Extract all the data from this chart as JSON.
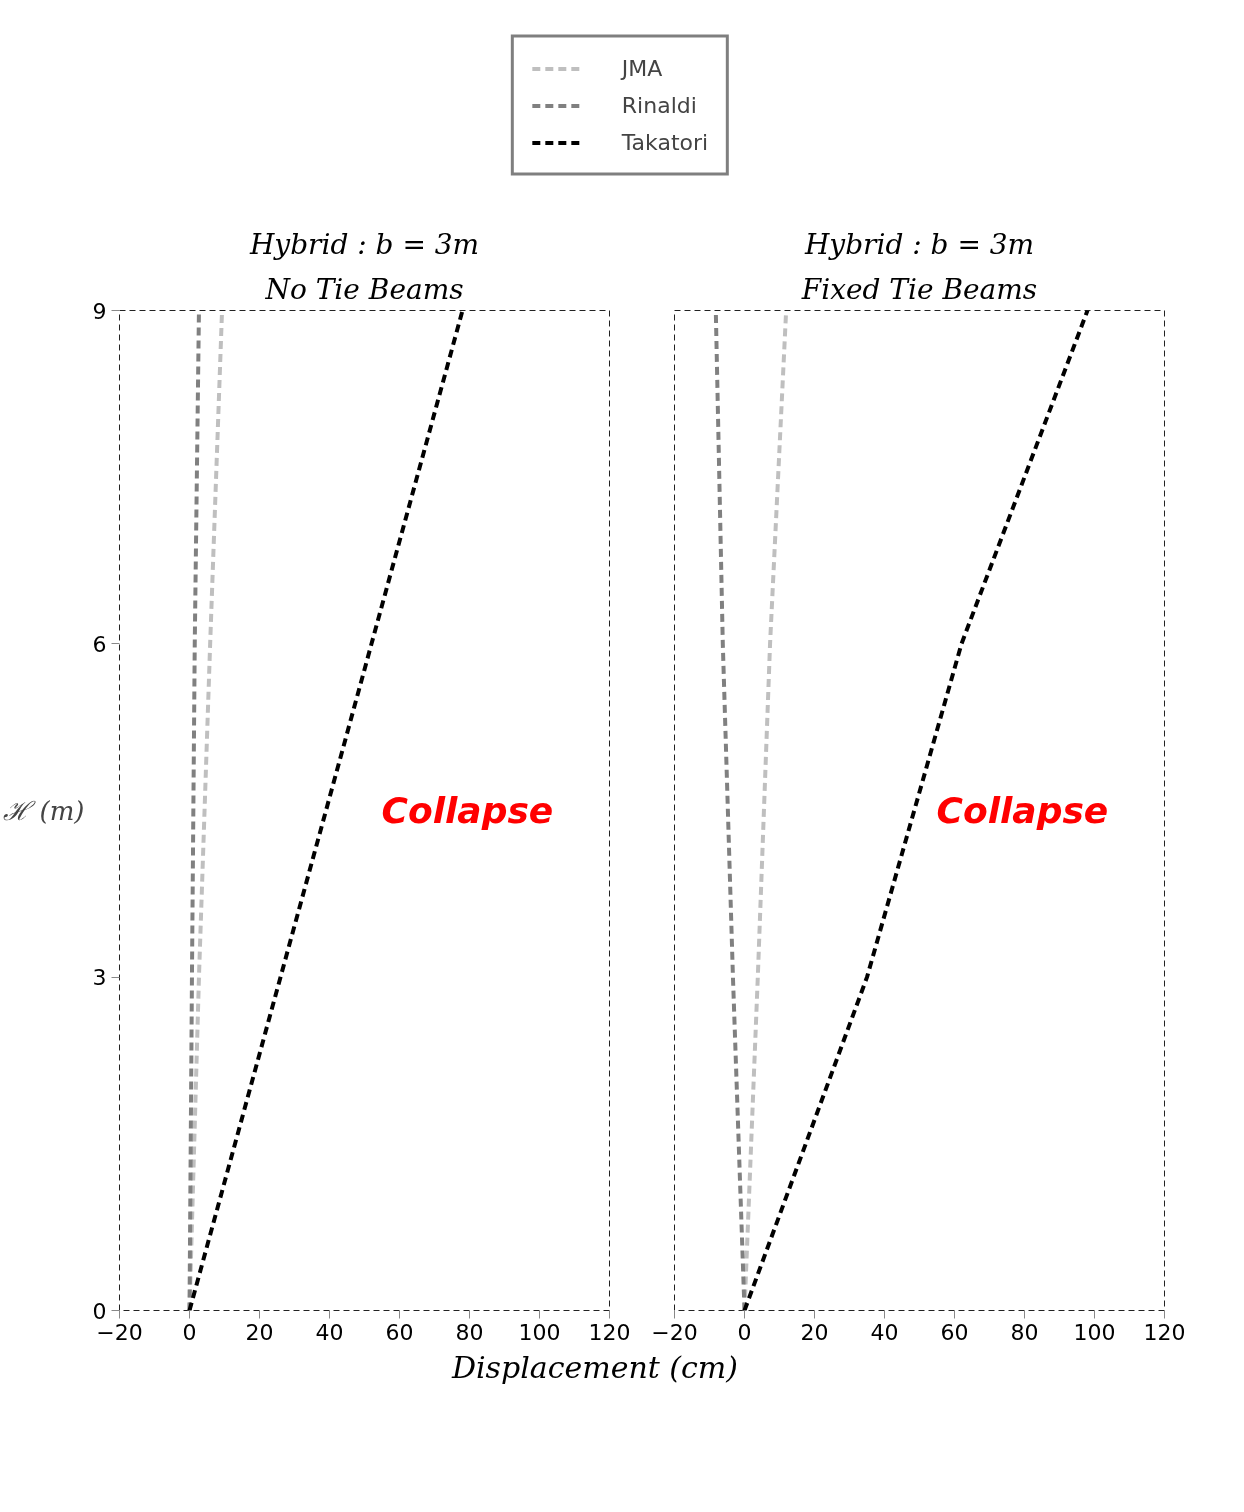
{
  "chart_data": [
    {
      "type": "line",
      "title": "Hybrid : b = 3m",
      "subtitle": "No Tie Beams",
      "ylabel": "ℋ (m)",
      "xlabel": "Displacement (cm)",
      "xlim": [
        -20,
        120
      ],
      "xticks": [
        -20,
        0,
        20,
        40,
        60,
        80,
        100,
        120
      ],
      "ylim": [
        0,
        9
      ],
      "yticks": [
        0,
        3,
        6,
        9
      ],
      "line_style": "dashed",
      "legend": "top",
      "marker": "none",
      "series": [
        {
          "name": "JMA",
          "color": "#bfbfbf",
          "x": [
            0,
            2.7,
            5.9,
            9.3
          ],
          "values": [
            0,
            3,
            6,
            9
          ]
        },
        {
          "name": "Rinaldi",
          "color": "#808080",
          "x": [
            0,
            0.7,
            1.5,
            2.7
          ],
          "values": [
            0,
            3,
            6,
            9
          ]
        },
        {
          "name": "Takatori",
          "color": "#000000",
          "x": [
            0,
            26,
            52,
            78
          ],
          "values": [
            0,
            3,
            6,
            9
          ]
        }
      ],
      "annotations": [
        "Collapse"
      ]
    },
    {
      "type": "line",
      "title": "Hybrid : b = 3m",
      "subtitle": "Fixed Tie Beams",
      "xlim": [
        -20,
        120
      ],
      "xticks": [
        -20,
        0,
        20,
        40,
        60,
        80,
        100,
        120
      ],
      "ylim": [
        0,
        9
      ],
      "tick_labels": "x",
      "line_style": "dashed",
      "marker": "none",
      "series": [
        {
          "color": "#bfbfbf",
          "x": [
            0,
            3.8,
            7.3,
            11.9
          ],
          "values": [
            0,
            3,
            6,
            9
          ]
        },
        {
          "color": "#808080",
          "x": [
            0,
            -3.3,
            -6.2,
            -8.2
          ],
          "values": [
            0,
            3,
            6,
            9
          ]
        },
        {
          "color": "#000000",
          "x": [
            0,
            35,
            62,
            98
          ],
          "values": [
            0,
            3,
            6,
            9
          ]
        }
      ],
      "annotations": [
        "Collapse"
      ]
    }
  ]
}
